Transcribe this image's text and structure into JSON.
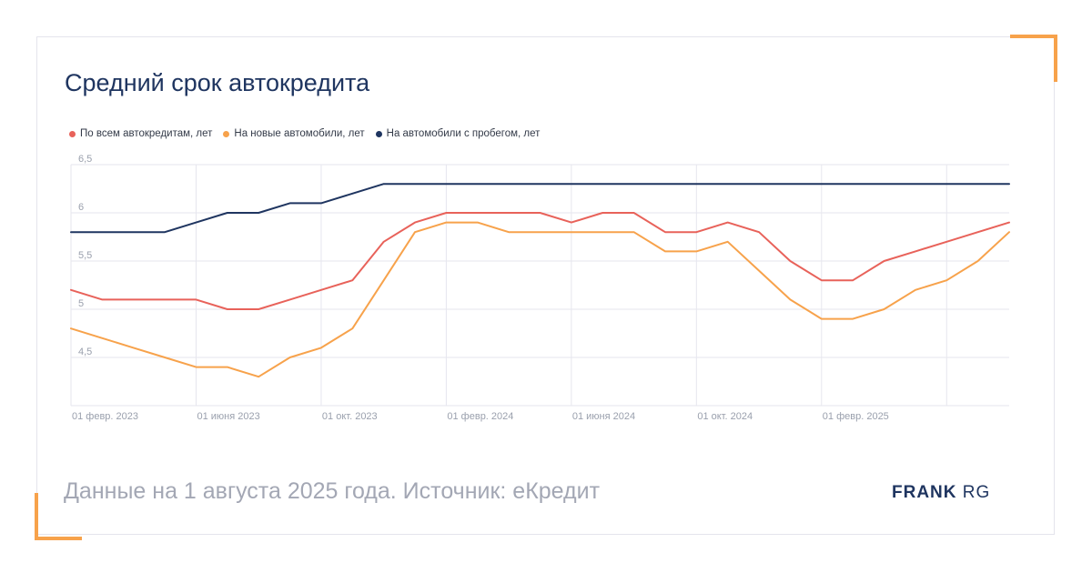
{
  "title": "Средний срок автокредита",
  "footer": {
    "source": "Данные на 1 августа 2025 года. Источник: еКредит",
    "brand_strong": "FRANK",
    "brand_light": "RG"
  },
  "colors": {
    "accent": "#f7a24b",
    "navy": "#1f3560"
  },
  "chart_data": {
    "type": "line",
    "title": "Средний срок автокредита",
    "xlabel": "",
    "ylabel": "",
    "ylim": [
      4,
      6.5
    ],
    "y_ticks": [
      "6,5",
      "6",
      "5,5",
      "5",
      "4,5"
    ],
    "y_tick_values": [
      6.5,
      6,
      5.5,
      5,
      4.5
    ],
    "x_ticks": [
      "01 февр. 2023",
      "01 июня 2023",
      "01 окт. 2023",
      "01 февр. 2024",
      "01 июня 2024",
      "01 окт. 2024",
      "01 февр. 2025"
    ],
    "x_tick_index": [
      0,
      4,
      8,
      12,
      16,
      20,
      24
    ],
    "x": [
      "2023-02",
      "2023-03",
      "2023-04",
      "2023-05",
      "2023-06",
      "2023-07",
      "2023-08",
      "2023-09",
      "2023-10",
      "2023-11",
      "2023-12",
      "2024-01",
      "2024-02",
      "2024-03",
      "2024-04",
      "2024-05",
      "2024-06",
      "2024-07",
      "2024-08",
      "2024-09",
      "2024-10",
      "2024-11",
      "2024-12",
      "2025-01",
      "2025-02",
      "2025-03",
      "2025-04",
      "2025-05",
      "2025-06",
      "2025-07",
      "2025-08"
    ],
    "grid": true,
    "legend_position": "top-left",
    "series": [
      {
        "name": "По всем автокредитам, лет",
        "color": "#e8625a",
        "values": [
          5.2,
          5.1,
          5.1,
          5.1,
          5.1,
          5.0,
          5.0,
          5.1,
          5.2,
          5.3,
          5.7,
          5.9,
          6.0,
          6.0,
          6.0,
          6.0,
          5.9,
          6.0,
          6.0,
          5.8,
          5.8,
          5.9,
          5.8,
          5.5,
          5.3,
          5.3,
          5.5,
          5.6,
          5.7,
          5.8,
          5.9
        ]
      },
      {
        "name": "На новые автомобили, лет",
        "color": "#f7a24b",
        "values": [
          4.8,
          4.7,
          4.6,
          4.5,
          4.4,
          4.4,
          4.3,
          4.5,
          4.6,
          4.8,
          5.3,
          5.8,
          5.9,
          5.9,
          5.8,
          5.8,
          5.8,
          5.8,
          5.8,
          5.6,
          5.6,
          5.7,
          5.4,
          5.1,
          4.9,
          4.9,
          5.0,
          5.2,
          5.3,
          5.5,
          5.8
        ]
      },
      {
        "name": "На автомобили с пробегом, лет",
        "color": "#1f3560",
        "values": [
          5.8,
          5.8,
          5.8,
          5.8,
          5.9,
          6.0,
          6.0,
          6.1,
          6.1,
          6.2,
          6.3,
          6.3,
          6.3,
          6.3,
          6.3,
          6.3,
          6.3,
          6.3,
          6.3,
          6.3,
          6.3,
          6.3,
          6.3,
          6.3,
          6.3,
          6.3,
          6.3,
          6.3,
          6.3,
          6.3,
          6.3
        ]
      }
    ]
  }
}
